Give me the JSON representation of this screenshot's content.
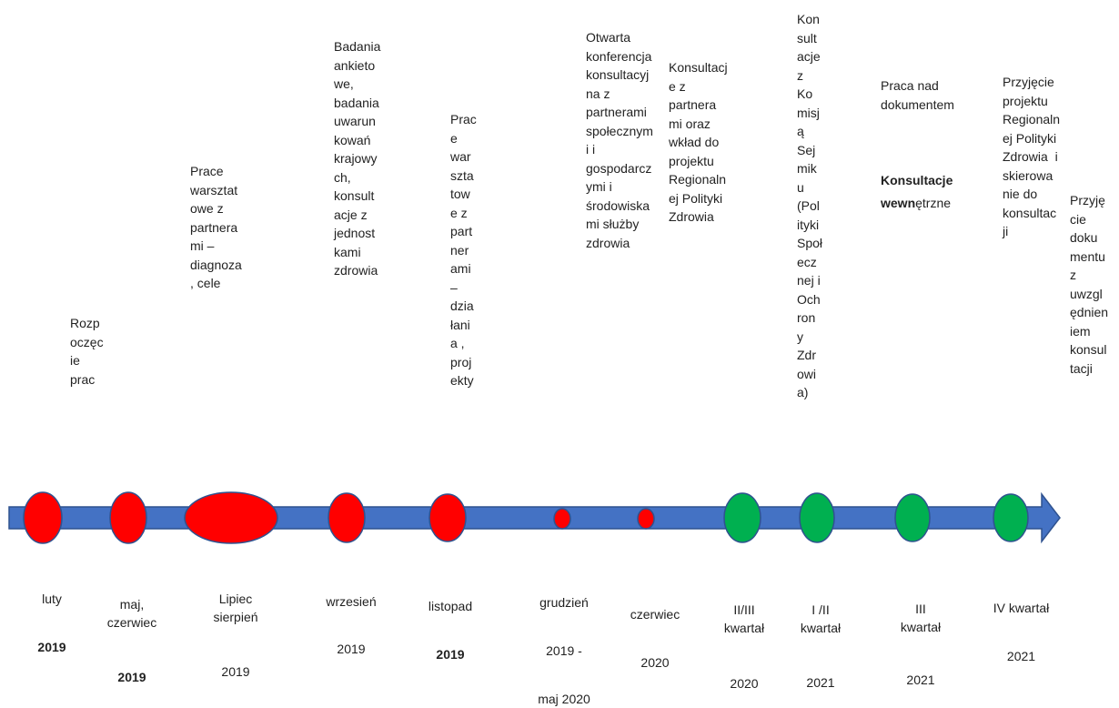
{
  "colors": {
    "arrow_fill": "#4472C4",
    "arrow_stroke": "#2F528F",
    "past": "#FF0000",
    "future": "#00B050",
    "marker_stroke": "#2F528F"
  },
  "events": [
    {
      "id": "e1",
      "status": "past",
      "description": "Rozp\noczęc\nie\nprac",
      "date_line1": "luty",
      "date_line2": "2019"
    },
    {
      "id": "e2",
      "status": "past",
      "description": "Prace\nwarsztat\nowe z\npartnera\nmi –\ndiagnoza\n, cele",
      "date_line1": "maj,\nczerwiec",
      "date_line2": "2019"
    },
    {
      "id": "e3",
      "status": "past",
      "description": "",
      "date_line1": "Lipiec\nsierpień",
      "date_line2": "2019"
    },
    {
      "id": "e4",
      "status": "past",
      "description": "Badania\nankieto\nwe,\nbadania\nuwarun\nkowań\nkrajowy\nch,\nkonsult\nacje z\njednost\nkami\nzdrowia",
      "date_line1": "wrzesień",
      "date_line2": "2019"
    },
    {
      "id": "e5",
      "status": "past",
      "description": "Prac\ne\nwar\nszta\ntow\ne z\npart\nner\nami\n–\ndzia\nłani\na ,\nproj\nekty",
      "date_line1": "listopad",
      "date_line2": "2019"
    },
    {
      "id": "e6",
      "status": "past",
      "description": "Otwarta\nkonferencja\nkonsultacyj\nna z\npartnerami\nspołecznym\ni i\ngospodarcz\nymi i\nśrodowiska\nmi służby\nzdrowia",
      "date_line1": "grudzień",
      "date_line2": "2019 -",
      "date_line3": "maj 2020"
    },
    {
      "id": "e7",
      "status": "past",
      "description": "Konsultacj\ne z\npartnera\nmi oraz\nwkład do\nprojektu\nRegionaln\nej Polityki\nZdrowia",
      "date_line1": "czerwiec",
      "date_line2": "2020"
    },
    {
      "id": "e8",
      "status": "future",
      "description": "",
      "date_line1": "II/III\nkwartał",
      "date_line2": "2020"
    },
    {
      "id": "e9",
      "status": "future",
      "description": "Kon\nsult\nacje\nz\nKo\nmisj\ną\nSej\nmik\nu\n(Pol\nityki\nSpoł\necz\nnej i\nOch\nron\ny\nZdr\nowi\na)",
      "date_line1": "I /II\nkwartał",
      "date_line2": "2021"
    },
    {
      "id": "e10",
      "status": "future",
      "description": "Praca nad\ndokumentem",
      "description_bold_1": "Konsultacje",
      "description_bold_2": "wewn",
      "description_tail": "ętrzne",
      "date_line1": "III\nkwartał",
      "date_line2": "2021"
    },
    {
      "id": "e11",
      "status": "future",
      "description": "Przyjęcie\nprojektu\nRegionaln\nej Polityki\nZdrowia  i\nskierowa\nnie do\nkonsultac\nji",
      "date_line1": "IV kwartał",
      "date_line2": "2021"
    },
    {
      "id": "e12",
      "status": "future",
      "description": "Przyję\ncie\ndoku\nmentu\nz\nuwzgl\nędnien\niem\nkonsul\ntacji"
    }
  ]
}
